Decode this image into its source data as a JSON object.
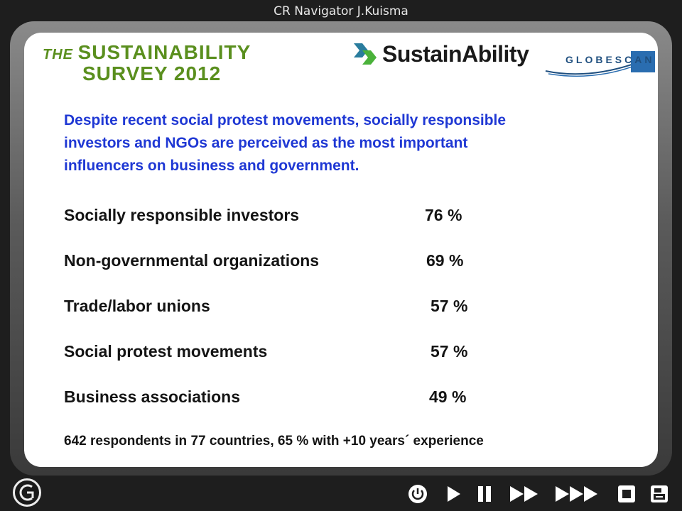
{
  "window": {
    "title": "CR Navigator J.Kuisma"
  },
  "logos": {
    "survey_line1_prefix": "THE ",
    "survey_line1": "SUSTAINABILITY",
    "survey_line2": "SURVEY 2012",
    "sustainability": "SustainAbility",
    "globescan": "GLOBESCAN"
  },
  "slide": {
    "headline": [
      "Despite recent social protest movements, socially responsible",
      "investors and NGOs are perceived as the most important",
      "influencers on business and government."
    ],
    "rows": [
      {
        "label": "Socially responsible investors",
        "value": "76 %"
      },
      {
        "label": "Non-governmental organizations",
        "value": "69 %"
      },
      {
        "label": "Trade/labor unions",
        "value": "57 %"
      },
      {
        "label": "Social protest movements",
        "value": "57 %"
      },
      {
        "label": "Business associations",
        "value": "49 %"
      }
    ],
    "footnote": "642 respondents in 77 countries, 65 % with +10 years´ experience"
  },
  "toolbar": {
    "buttons": [
      "power-icon",
      "play-icon",
      "pause-icon",
      "fast-forward-icon",
      "faster-forward-icon",
      "stop-icon",
      "print-icon"
    ]
  },
  "colors": {
    "headline": "#1f38d4",
    "survey_logo": "#5a8f1e",
    "globescan": "#1f4f7f"
  }
}
